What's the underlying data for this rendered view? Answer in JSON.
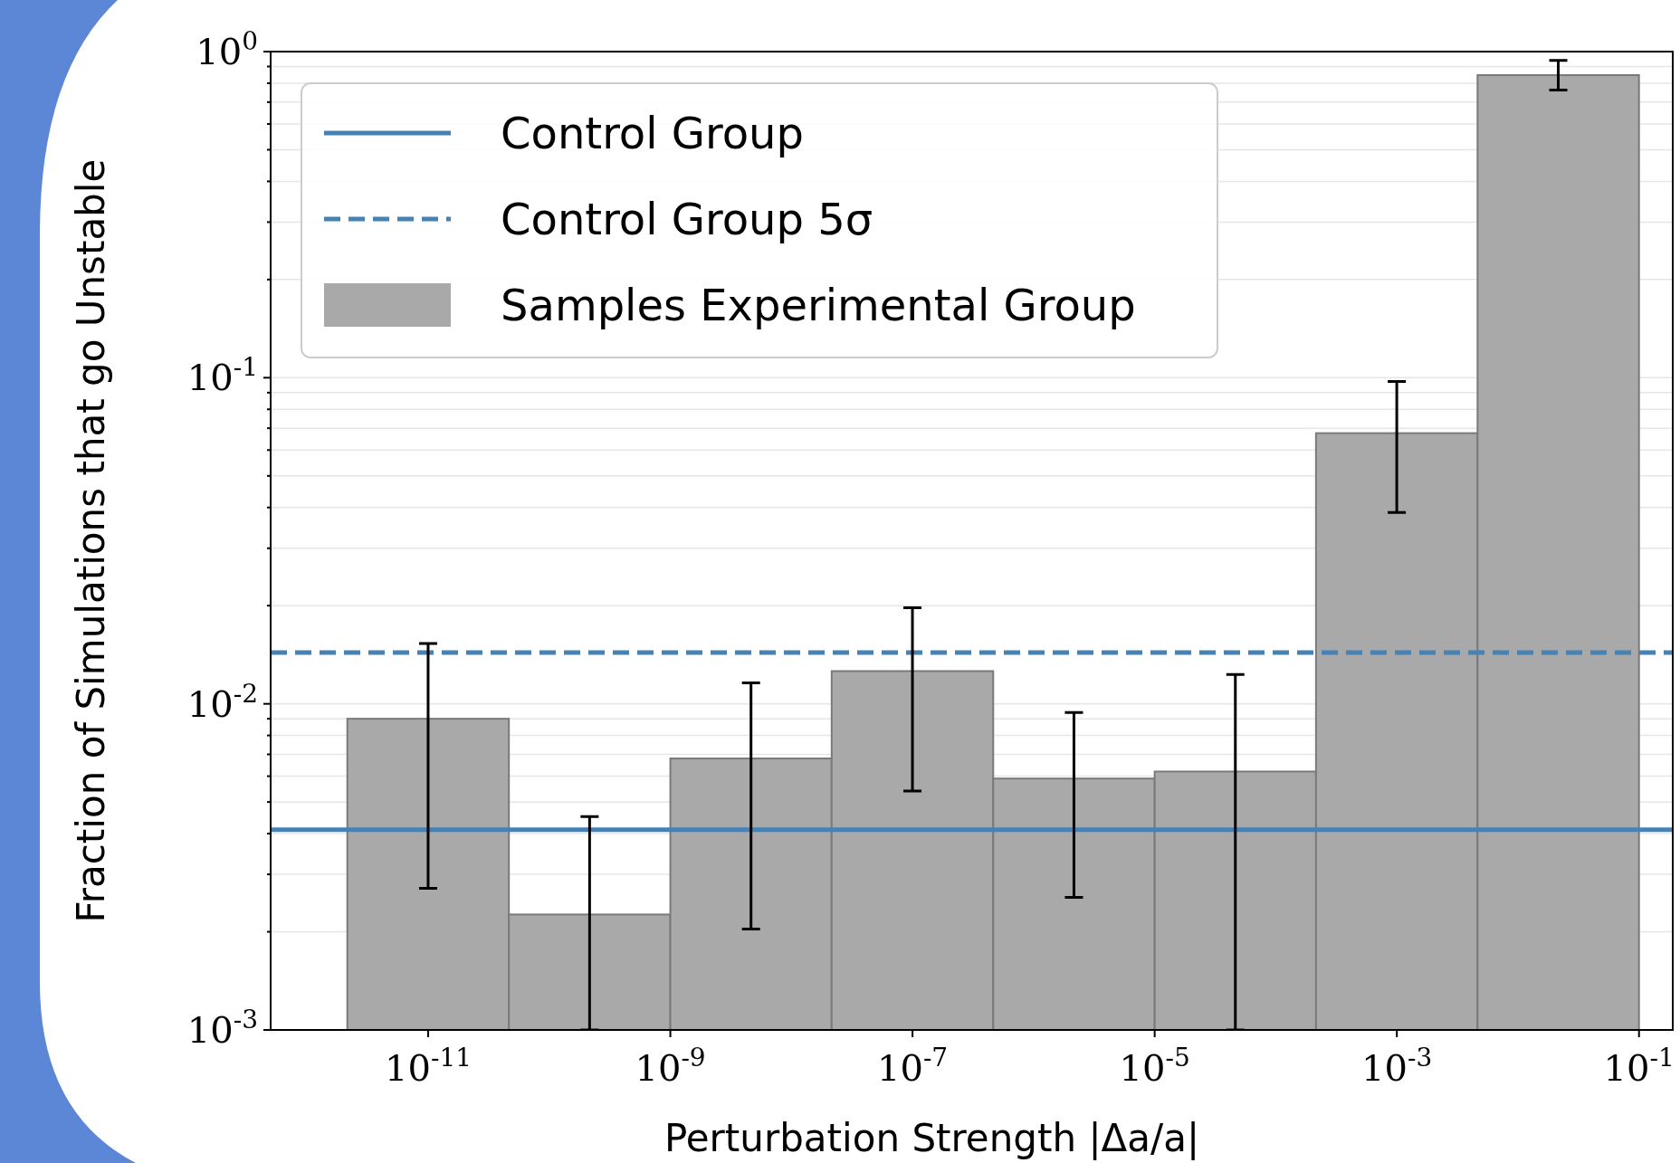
{
  "chart_data": {
    "type": "histogram",
    "xlabel": "Perturbation Strength |Δa/a|",
    "ylabel": "Fraction of Simulations that go Unstable",
    "bins": [
      2.15e-12,
      4.64e-11,
      1e-09,
      2.15e-08,
      4.64e-07,
      1e-05,
      0.000215,
      0.00464,
      0.1
    ],
    "series": [
      {
        "name": "Samples Experimental Group",
        "color": "#a9a9a9",
        "values": [
          0.009,
          0.00226,
          0.0068,
          0.0126,
          0.0059,
          0.0062,
          0.0676,
          0.847
        ],
        "errors": [
          [
            0.00272,
            0.0153
          ],
          [
            0.001,
            0.00451
          ],
          [
            0.00204,
            0.0116
          ],
          [
            0.0054,
            0.0197
          ],
          [
            0.00255,
            0.0094
          ],
          [
            0.001,
            0.0123
          ],
          [
            0.0386,
            0.0973
          ],
          [
            0.762,
            0.94
          ]
        ]
      }
    ],
    "ref_lines": [
      {
        "axis": "y",
        "value": 0.00411,
        "label": "Control Group",
        "color": "#4682b4",
        "line_style": "solid"
      },
      {
        "axis": "y",
        "value": 0.01436,
        "label": "Control Group 5σ",
        "color": "#4682b4",
        "line_style": "dashed"
      }
    ],
    "log": "xy",
    "xlim": [
      5e-13,
      0.19
    ],
    "ylim": [
      0.001,
      1
    ],
    "xticks": [
      {
        "value": 1e-11,
        "label": "10$^{-11}$"
      },
      {
        "value": 1e-09,
        "label": "10$^{-9}$"
      },
      {
        "value": 1e-07,
        "label": "10$^{-7}$"
      },
      {
        "value": 1e-05,
        "label": "10$^{-5}$"
      },
      {
        "value": 0.001,
        "label": "10$^{-3}$"
      },
      {
        "value": 0.1,
        "label": "10$^{-1}$"
      }
    ],
    "yticks": [
      {
        "value": 0.001,
        "label": "10$^{-3}$"
      },
      {
        "value": 0.002,
        "label": null
      },
      {
        "value": 0.003,
        "label": null
      },
      {
        "value": 0.004,
        "label": null
      },
      {
        "value": 0.005,
        "label": null
      },
      {
        "value": 0.006,
        "label": null
      },
      {
        "value": 0.007,
        "label": null
      },
      {
        "value": 0.008,
        "label": null
      },
      {
        "value": 0.009,
        "label": null
      },
      {
        "value": 0.01,
        "label": "10$^{-2}$"
      },
      {
        "value": 0.02,
        "label": null
      },
      {
        "value": 0.03,
        "label": null
      },
      {
        "value": 0.04,
        "label": null
      },
      {
        "value": 0.05,
        "label": null
      },
      {
        "value": 0.06,
        "label": null
      },
      {
        "value": 0.07,
        "label": null
      },
      {
        "value": 0.08,
        "label": null
      },
      {
        "value": 0.09,
        "label": null
      },
      {
        "value": 0.1,
        "label": "10$^{-1}$"
      },
      {
        "value": 0.2,
        "label": null
      },
      {
        "value": 0.3,
        "label": null
      },
      {
        "value": 0.4,
        "label": null
      },
      {
        "value": 0.5,
        "label": null
      },
      {
        "value": 0.6,
        "label": null
      },
      {
        "value": 0.7,
        "label": null
      },
      {
        "value": 0.8,
        "label": null
      },
      {
        "value": 0.9,
        "label": null
      },
      {
        "value": 1,
        "label": "10$^{0}$"
      }
    ],
    "grid": "y",
    "legend": "top left"
  }
}
